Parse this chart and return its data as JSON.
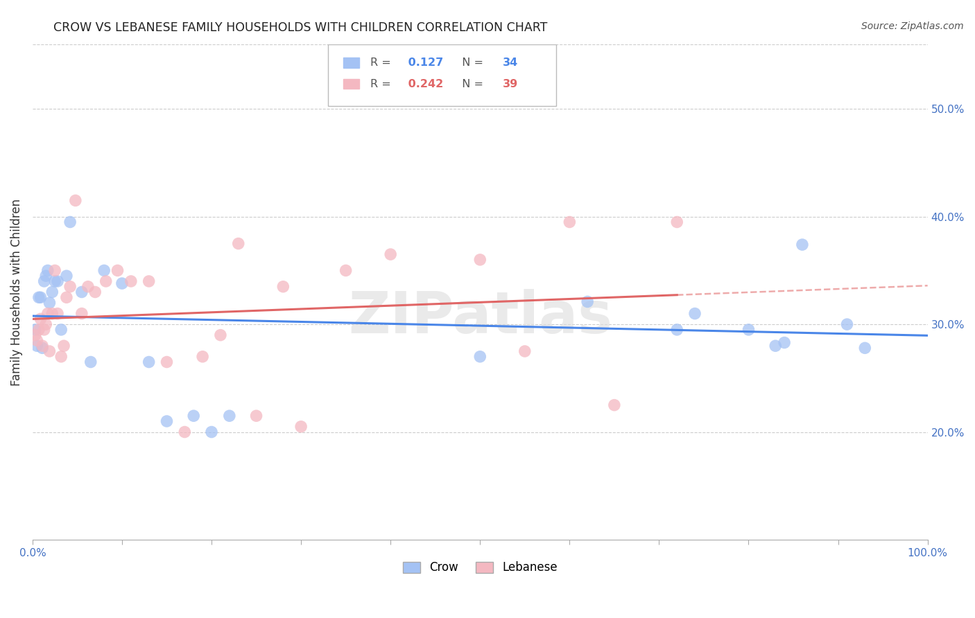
{
  "title": "CROW VS LEBANESE FAMILY HOUSEHOLDS WITH CHILDREN CORRELATION CHART",
  "source": "Source: ZipAtlas.com",
  "ylabel": "Family Households with Children",
  "watermark": "ZIPatlas",
  "crow_R": 0.127,
  "crow_N": 34,
  "lebanese_R": 0.242,
  "lebanese_N": 39,
  "crow_color": "#a4c2f4",
  "lebanese_color": "#f4b8c1",
  "crow_line_color": "#4a86e8",
  "lebanese_line_color": "#e06666",
  "axis_label_color": "#4472c4",
  "grid_color": "#cccccc",
  "xlim": [
    0.0,
    1.0
  ],
  "ylim": [
    0.1,
    0.56
  ],
  "xticks": [
    0.0,
    0.1,
    0.2,
    0.3,
    0.4,
    0.5,
    0.6,
    0.7,
    0.8,
    0.9,
    1.0
  ],
  "yticks": [
    0.2,
    0.3,
    0.4,
    0.5
  ],
  "xticklabels": [
    "0.0%",
    "",
    "",
    "",
    "",
    "",
    "",
    "",
    "",
    "",
    "100.0%"
  ],
  "yticklabels": [
    "20.0%",
    "30.0%",
    "40.0%",
    "50.0%"
  ],
  "crow_x": [
    0.003,
    0.005,
    0.007,
    0.009,
    0.011,
    0.013,
    0.015,
    0.017,
    0.019,
    0.022,
    0.025,
    0.028,
    0.032,
    0.038,
    0.042,
    0.055,
    0.065,
    0.08,
    0.1,
    0.13,
    0.15,
    0.18,
    0.2,
    0.22,
    0.5,
    0.62,
    0.72,
    0.74,
    0.8,
    0.83,
    0.84,
    0.86,
    0.91,
    0.93
  ],
  "crow_y": [
    0.295,
    0.28,
    0.325,
    0.325,
    0.278,
    0.34,
    0.345,
    0.35,
    0.32,
    0.33,
    0.34,
    0.34,
    0.295,
    0.345,
    0.395,
    0.33,
    0.265,
    0.35,
    0.338,
    0.265,
    0.21,
    0.215,
    0.2,
    0.215,
    0.27,
    0.321,
    0.295,
    0.31,
    0.295,
    0.28,
    0.283,
    0.374,
    0.3,
    0.278
  ],
  "lebanese_x": [
    0.003,
    0.005,
    0.007,
    0.009,
    0.011,
    0.013,
    0.015,
    0.017,
    0.019,
    0.022,
    0.025,
    0.028,
    0.032,
    0.035,
    0.038,
    0.042,
    0.048,
    0.055,
    0.062,
    0.07,
    0.082,
    0.095,
    0.11,
    0.13,
    0.15,
    0.17,
    0.19,
    0.21,
    0.23,
    0.25,
    0.28,
    0.3,
    0.35,
    0.4,
    0.5,
    0.55,
    0.6,
    0.65,
    0.72
  ],
  "lebanese_y": [
    0.29,
    0.285,
    0.295,
    0.305,
    0.28,
    0.295,
    0.3,
    0.31,
    0.275,
    0.31,
    0.35,
    0.31,
    0.27,
    0.28,
    0.325,
    0.335,
    0.415,
    0.31,
    0.335,
    0.33,
    0.34,
    0.35,
    0.34,
    0.34,
    0.265,
    0.2,
    0.27,
    0.29,
    0.375,
    0.215,
    0.335,
    0.205,
    0.35,
    0.365,
    0.36,
    0.275,
    0.395,
    0.225,
    0.395
  ]
}
